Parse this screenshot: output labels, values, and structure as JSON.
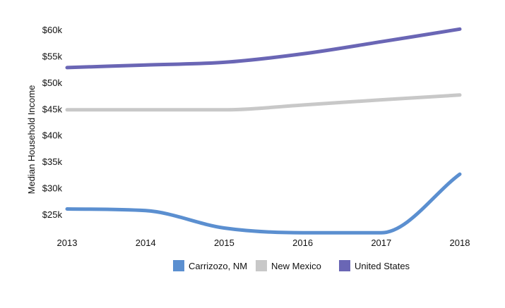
{
  "chart_data": {
    "type": "line",
    "title": "",
    "xlabel": "",
    "ylabel": "Median Household Income",
    "x": [
      2013,
      2014,
      2015,
      2016,
      2017,
      2018
    ],
    "x_tick_labels": [
      "2013",
      "2014",
      "2015",
      "2016",
      "2017",
      "2018"
    ],
    "y_ticks": [
      25000,
      30000,
      35000,
      40000,
      45000,
      50000,
      55000,
      60000
    ],
    "y_tick_labels": [
      "$25k",
      "$30k",
      "$35k",
      "$40k",
      "$45k",
      "$50k",
      "$55k",
      "$60k"
    ],
    "ylim": [
      20000,
      62000
    ],
    "grid": false,
    "legend_position": "bottom",
    "series": [
      {
        "name": "Carrizozo, NM",
        "color": "#5b8fd0",
        "values": [
          26000,
          25700,
          22400,
          21500,
          21500,
          32600
        ]
      },
      {
        "name": "New Mexico",
        "color": "#c8c8c8",
        "values": [
          44800,
          44800,
          44800,
          45700,
          46700,
          47600
        ]
      },
      {
        "name": "United States",
        "color": "#6a66b5",
        "values": [
          52800,
          53300,
          53800,
          55400,
          57700,
          60100
        ]
      }
    ]
  }
}
